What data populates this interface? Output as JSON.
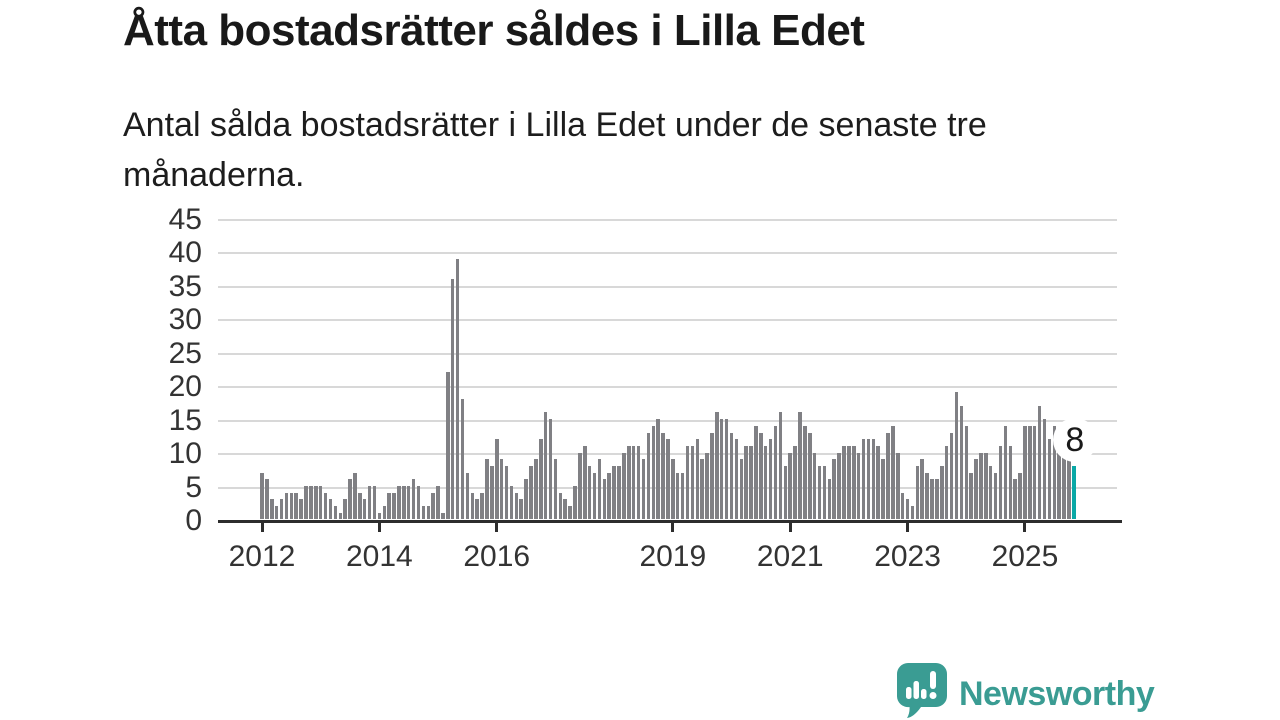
{
  "header": {
    "title": "Åtta bostadsrätter såldes i Lilla Edet",
    "subtitle": "Antal sålda bostadsrätter i Lilla Edet under de senaste tre månaderna."
  },
  "chart_data": {
    "type": "bar",
    "title": "Åtta bostadsrätter såldes i Lilla Edet",
    "xlabel": "",
    "ylabel": "",
    "x_frequency": "monthly",
    "x_start": "2012-01",
    "x_end": "2025-11",
    "x_tick_years": [
      2012,
      2014,
      2016,
      2019,
      2021,
      2023,
      2025
    ],
    "y_ticks": [
      0,
      5,
      10,
      15,
      20,
      25,
      30,
      35,
      40,
      45
    ],
    "ylim": [
      0,
      45
    ],
    "grid": "horizontal",
    "legend": "none",
    "bar_color": "#808084",
    "highlight_color": "#0aa8a6",
    "highlight_label": "8",
    "highlight_index": 166,
    "series": [
      {
        "name": "Antal sålda bostadsrätter",
        "values": [
          7,
          6,
          3,
          2,
          3,
          4,
          4,
          4,
          3,
          5,
          5,
          5,
          5,
          4,
          3,
          2,
          1,
          3,
          6,
          7,
          4,
          3,
          5,
          5,
          1,
          2,
          4,
          4,
          5,
          5,
          5,
          6,
          5,
          2,
          2,
          4,
          5,
          1,
          22,
          36,
          39,
          18,
          7,
          4,
          3,
          4,
          9,
          8,
          12,
          9,
          8,
          5,
          4,
          3,
          6,
          8,
          9,
          12,
          16,
          15,
          9,
          4,
          3,
          2,
          5,
          10,
          11,
          8,
          7,
          9,
          6,
          7,
          8,
          8,
          10,
          11,
          11,
          11,
          9,
          13,
          14,
          15,
          13,
          12,
          9,
          7,
          7,
          11,
          11,
          12,
          9,
          10,
          13,
          16,
          15,
          15,
          13,
          12,
          9,
          11,
          11,
          14,
          13,
          11,
          12,
          14,
          16,
          8,
          10,
          11,
          16,
          14,
          13,
          10,
          8,
          8,
          6,
          9,
          10,
          11,
          11,
          11,
          10,
          12,
          12,
          12,
          11,
          9,
          13,
          14,
          10,
          4,
          3,
          2,
          8,
          9,
          7,
          6,
          6,
          8,
          11,
          13,
          19,
          17,
          14,
          7,
          9,
          10,
          10,
          8,
          7,
          11,
          14,
          11,
          6,
          7,
          14,
          14,
          14,
          17,
          15,
          12,
          14,
          13,
          11,
          10,
          8
        ]
      }
    ]
  },
  "footer": {
    "brand": "Newsworthy"
  },
  "colors": {
    "title_text": "#191919",
    "axis_text": "#333333",
    "gridline": "#d8d8d8",
    "axis_line": "#2d2d2d",
    "bar": "#808084",
    "highlight": "#0aa8a6",
    "brand_teal": "#3a9c93"
  }
}
